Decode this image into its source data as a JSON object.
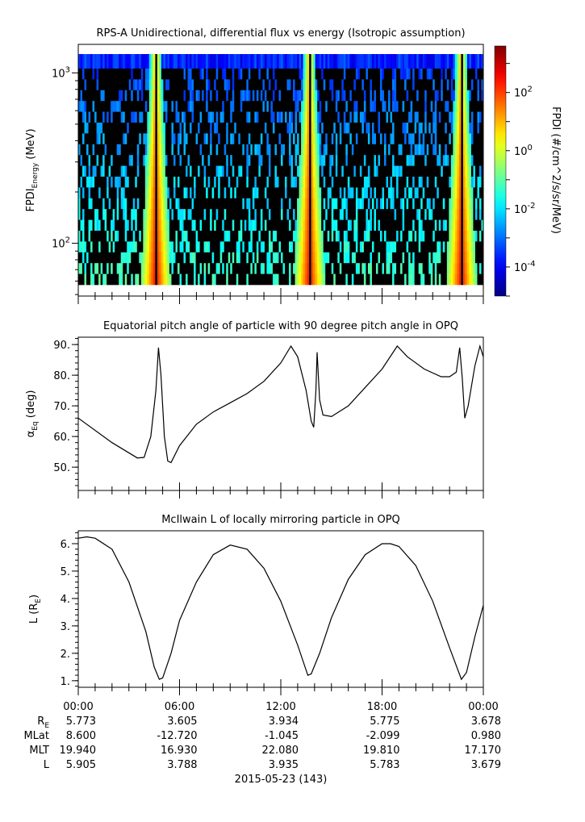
{
  "chart_data": [
    {
      "type": "heatmap",
      "title": "RPS-A Unidirectional, differential flux vs energy (Isotropic assumption)",
      "ylabel": "FPDI",
      "ylabel_sub": "Energy",
      "ylabel_unit": " (MeV)",
      "yscale": "log",
      "ylim": [
        49,
        1470
      ],
      "yticks": [
        {
          "base": "10",
          "exp": "3",
          "value": 1000
        },
        {
          "base": "10",
          "exp": "2",
          "value": 100
        }
      ],
      "xlim_hours": [
        0,
        24
      ],
      "description_peaks_hours": [
        4.6,
        13.7,
        22.7
      ],
      "colorbar": {
        "label": "FPDI (#/cm^2/s/sr/MeV)",
        "scale": "log",
        "log_range": [
          -5.0,
          3.6
        ],
        "ticks": [
          {
            "base": "10",
            "exp": "2",
            "log": 2
          },
          {
            "base": "10",
            "exp": "0",
            "log": 0
          },
          {
            "base": "10",
            "exp": "-2",
            "log": -2
          },
          {
            "base": "10",
            "exp": "-4",
            "log": -4
          }
        ]
      }
    },
    {
      "type": "line",
      "title": "Equatorial pitch angle of particle with 90 degree pitch angle in OPQ",
      "ylabel": "α",
      "ylabel_sub": "Eq",
      "ylabel_unit": " (deg)",
      "ylim": [
        42.4,
        92.4
      ],
      "yticks": [
        "50.",
        "60.",
        "70.",
        "80.",
        "90."
      ],
      "x_hours": [
        0,
        2,
        3.5,
        3.9,
        4.3,
        4.6,
        4.75,
        4.9,
        5.1,
        5.3,
        5.5,
        6,
        7,
        8,
        9,
        10,
        11,
        12,
        12.6,
        13,
        13.5,
        13.8,
        13.95,
        14.08,
        14.15,
        14.3,
        14.5,
        15,
        16,
        17,
        18,
        18.9,
        19.5,
        20.5,
        21.5,
        22,
        22.4,
        22.6,
        22.75,
        22.9,
        23.1,
        23.5,
        23.8,
        24
      ],
      "y": [
        66,
        58,
        53,
        53.2,
        60,
        75,
        89,
        80,
        60,
        52,
        51.5,
        57,
        64,
        68,
        71,
        74,
        78,
        84,
        89.5,
        86,
        75,
        65,
        63,
        75,
        87.5,
        72,
        67,
        66.5,
        70,
        76,
        82,
        89.5,
        86,
        82,
        79.5,
        79.5,
        81,
        89,
        79,
        66,
        70,
        83,
        89.5,
        86
      ]
    },
    {
      "type": "line",
      "title": "McIlwain L of locally mirroring particle in OPQ",
      "ylabel": "L (R",
      "ylabel_sub": "E",
      "ylabel_unit": ")",
      "ylim": [
        0.76,
        6.47
      ],
      "yticks": [
        "1.",
        "2.",
        "3.",
        "4.",
        "5.",
        "6."
      ],
      "x_hours": [
        0,
        0.5,
        1,
        2,
        3,
        4,
        4.5,
        4.8,
        5,
        5.5,
        6,
        7,
        8,
        9,
        10,
        11,
        12,
        13,
        13.6,
        13.8,
        14.3,
        15,
        16,
        17,
        18,
        18.5,
        19,
        20,
        21,
        22,
        22.7,
        23,
        23.5,
        24
      ],
      "y": [
        6.2,
        6.25,
        6.2,
        5.8,
        4.6,
        2.8,
        1.5,
        1.05,
        1.1,
        2.0,
        3.2,
        4.6,
        5.6,
        5.95,
        5.8,
        5.1,
        3.9,
        2.3,
        1.2,
        1.25,
        2.0,
        3.3,
        4.7,
        5.6,
        6.0,
        6.0,
        5.9,
        5.2,
        3.9,
        2.2,
        1.05,
        1.3,
        2.6,
        3.75
      ]
    }
  ],
  "ephemeris": {
    "times": [
      "00:00",
      "06:00",
      "12:00",
      "18:00",
      "00:00"
    ],
    "rows": [
      {
        "label": "R",
        "label_sub": "E",
        "values": [
          "5.773",
          "3.605",
          "3.934",
          "5.775",
          "3.678"
        ]
      },
      {
        "label": "MLat",
        "label_sub": "",
        "values": [
          "8.600",
          "-12.720",
          "-1.045",
          "-2.099",
          "0.980"
        ]
      },
      {
        "label": "MLT",
        "label_sub": "",
        "values": [
          "19.940",
          "16.930",
          "22.080",
          "19.810",
          "17.170"
        ]
      },
      {
        "label": "L",
        "label_sub": "",
        "values": [
          "5.905",
          "3.788",
          "3.935",
          "5.783",
          "3.679"
        ]
      }
    ],
    "date": "2015-05-23 (143)"
  }
}
